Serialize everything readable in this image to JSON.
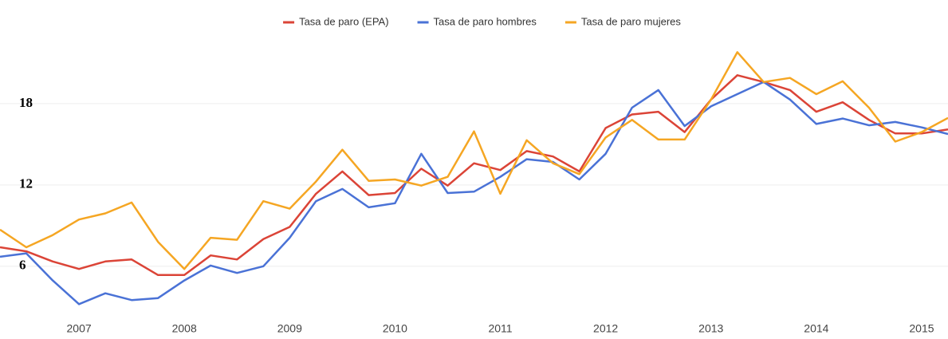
{
  "chart_data": {
    "type": "line",
    "x": [
      2006.25,
      2006.5,
      2006.75,
      2007,
      2007.25,
      2007.5,
      2007.75,
      2008,
      2008.25,
      2008.5,
      2008.75,
      2009,
      2009.25,
      2009.5,
      2009.75,
      2010,
      2010.25,
      2010.5,
      2010.75,
      2011,
      2011.25,
      2011.5,
      2011.75,
      2012,
      2012.25,
      2012.5,
      2012.75,
      2013,
      2013.25,
      2013.5,
      2013.75,
      2014,
      2014.25,
      2014.5,
      2014.75,
      2015,
      2015.25
    ],
    "xlim": [
      2006.25,
      2015.25
    ],
    "xticks": [
      2007,
      2008,
      2009,
      2010,
      2011,
      2012,
      2013,
      2014,
      2015
    ],
    "ylim": [
      2.1,
      23
    ],
    "yticks": [
      6,
      12,
      18
    ],
    "grid": true,
    "legend": "top",
    "series": [
      {
        "name": "Tasa de paro (EPA)",
        "color": "#db4437",
        "values": [
          7.4,
          7.1,
          6.35,
          5.8,
          6.35,
          6.5,
          5.35,
          5.35,
          6.8,
          6.5,
          8.0,
          8.9,
          11.35,
          13.0,
          11.25,
          11.4,
          13.2,
          11.95,
          13.6,
          13.1,
          14.5,
          14.1,
          13.0,
          16.2,
          17.2,
          17.4,
          15.9,
          18.3,
          20.1,
          19.6,
          19.0,
          17.4,
          18.1,
          16.8,
          15.8,
          15.8,
          16.1
        ]
      },
      {
        "name": "Tasa de paro hombres",
        "color": "#4a72d6",
        "values": [
          6.7,
          6.95,
          4.95,
          3.2,
          4.0,
          3.5,
          3.65,
          4.95,
          6.05,
          5.5,
          6.0,
          8.1,
          10.8,
          11.7,
          10.35,
          10.65,
          14.3,
          11.4,
          11.5,
          12.6,
          13.9,
          13.7,
          12.4,
          14.3,
          17.7,
          19.0,
          16.35,
          17.8,
          18.7,
          19.6,
          18.3,
          16.5,
          16.9,
          16.4,
          16.65,
          16.25,
          15.75
        ]
      },
      {
        "name": "Tasa de paro mujeres",
        "color": "#f5a623",
        "values": [
          8.7,
          7.4,
          8.3,
          9.45,
          9.9,
          10.7,
          7.8,
          5.8,
          8.1,
          7.95,
          10.8,
          10.25,
          12.25,
          14.6,
          12.3,
          12.4,
          11.95,
          12.6,
          15.95,
          11.35,
          15.3,
          13.6,
          12.8,
          15.5,
          16.8,
          15.35,
          15.35,
          18.3,
          21.8,
          19.6,
          19.9,
          18.7,
          19.65,
          17.7,
          15.2,
          15.9,
          16.95
        ]
      }
    ]
  }
}
